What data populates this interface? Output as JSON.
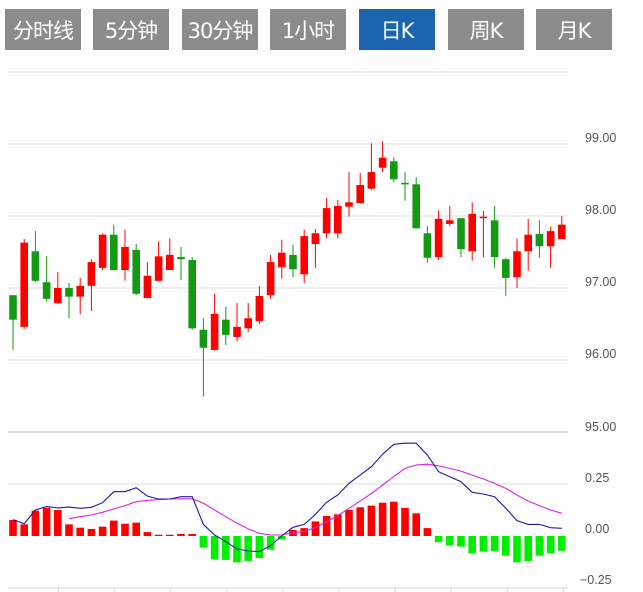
{
  "tabs": [
    {
      "label": "分时线",
      "active": false
    },
    {
      "label": "5分钟",
      "active": false
    },
    {
      "label": "30分钟",
      "active": false
    },
    {
      "label": "1小时",
      "active": false
    },
    {
      "label": "日K",
      "active": true
    },
    {
      "label": "周K",
      "active": false
    },
    {
      "label": "月K",
      "active": false
    }
  ],
  "colors": {
    "up": "#ff0000",
    "down": "#139a13",
    "macd_down": "#00ee00",
    "dif": "#1a1aaa",
    "dea": "#e020e0",
    "active_tab": "#1b64b0",
    "tab": "#8c8c8c"
  },
  "chart_data": [
    {
      "type": "candlestick",
      "title": "日K",
      "y_tick_labels": [
        "99.00",
        "98.00",
        "97.00",
        "96.00",
        "95.00"
      ],
      "ylim": [
        95,
        100
      ],
      "candles": [
        [
          96.9,
          96.56,
          96.9,
          96.14
        ],
        [
          96.46,
          97.63,
          97.68,
          96.43
        ],
        [
          97.51,
          97.1,
          97.79,
          97.08
        ],
        [
          97.08,
          96.85,
          97.44,
          96.81
        ],
        [
          96.79,
          97.0,
          97.22,
          96.78
        ],
        [
          97.0,
          96.88,
          97.07,
          96.58
        ],
        [
          96.88,
          97.03,
          97.14,
          96.64
        ],
        [
          97.03,
          97.36,
          97.4,
          96.68
        ],
        [
          97.28,
          97.74,
          97.76,
          97.25
        ],
        [
          97.74,
          97.25,
          97.88,
          97.24
        ],
        [
          97.25,
          97.57,
          97.81,
          97.1
        ],
        [
          97.53,
          96.92,
          97.61,
          96.9
        ],
        [
          96.86,
          97.17,
          97.36,
          96.86
        ],
        [
          97.1,
          97.44,
          97.65,
          97.1
        ],
        [
          97.25,
          97.46,
          97.69,
          97.25
        ],
        [
          97.43,
          97.4,
          97.57,
          97.11
        ],
        [
          97.39,
          96.44,
          97.43,
          96.42
        ],
        [
          96.42,
          96.17,
          96.58,
          95.49
        ],
        [
          96.14,
          96.64,
          96.92,
          96.13
        ],
        [
          96.56,
          96.35,
          96.74,
          96.21
        ],
        [
          96.32,
          96.46,
          96.79,
          96.26
        ],
        [
          96.44,
          96.58,
          96.79,
          96.39
        ],
        [
          96.54,
          96.89,
          97.03,
          96.5
        ],
        [
          96.9,
          97.36,
          97.46,
          96.85
        ],
        [
          97.29,
          97.49,
          97.67,
          97.13
        ],
        [
          97.46,
          97.26,
          97.6,
          97.15
        ],
        [
          97.19,
          97.72,
          97.81,
          97.07
        ],
        [
          97.61,
          97.76,
          97.82,
          97.28
        ],
        [
          97.76,
          98.11,
          98.25,
          97.69
        ],
        [
          97.76,
          98.14,
          98.22,
          97.69
        ],
        [
          98.13,
          98.19,
          98.61,
          97.99
        ],
        [
          98.18,
          98.43,
          98.6,
          98.17
        ],
        [
          98.38,
          98.61,
          99.01,
          98.36
        ],
        [
          98.67,
          98.81,
          99.04,
          98.61
        ],
        [
          98.76,
          98.51,
          98.82,
          98.47
        ],
        [
          98.46,
          98.44,
          98.61,
          98.21
        ],
        [
          98.44,
          97.83,
          98.54,
          97.82
        ],
        [
          97.76,
          97.42,
          97.86,
          97.35
        ],
        [
          97.43,
          97.96,
          98.08,
          97.39
        ],
        [
          97.89,
          97.94,
          98.14,
          97.86
        ],
        [
          97.97,
          97.54,
          97.97,
          97.43
        ],
        [
          97.51,
          98.03,
          98.19,
          97.38
        ],
        [
          97.97,
          97.99,
          98.07,
          97.43
        ],
        [
          97.94,
          97.43,
          98.14,
          97.28
        ],
        [
          97.4,
          97.14,
          97.42,
          96.89
        ],
        [
          97.15,
          97.51,
          97.69,
          97.0
        ],
        [
          97.51,
          97.74,
          97.96,
          97.24
        ],
        [
          97.75,
          97.58,
          97.94,
          97.42
        ],
        [
          97.58,
          97.79,
          97.85,
          97.28
        ],
        [
          97.68,
          97.88,
          98.0,
          97.68
        ]
      ],
      "candle_fields": [
        "open",
        "close",
        "high",
        "low"
      ]
    },
    {
      "type": "macd",
      "y_tick_labels": [
        "0.25",
        "0.00",
        "−0.25"
      ],
      "ylim": [
        -0.25,
        0.5
      ],
      "histogram": [
        0.077,
        0.056,
        0.122,
        0.136,
        0.125,
        0.056,
        0.04,
        0.034,
        0.045,
        0.074,
        0.059,
        0.064,
        0.019,
        0.006,
        0.006,
        0.01,
        0.01,
        -0.056,
        -0.112,
        -0.115,
        -0.127,
        -0.12,
        -0.106,
        -0.066,
        -0.016,
        0.029,
        0.038,
        0.07,
        0.096,
        0.104,
        0.125,
        0.138,
        0.146,
        0.16,
        0.165,
        0.135,
        0.109,
        0.038,
        -0.03,
        -0.046,
        -0.051,
        -0.083,
        -0.075,
        -0.072,
        -0.095,
        -0.127,
        -0.12,
        -0.095,
        -0.083,
        -0.071
      ],
      "dif": [
        0.079,
        0.059,
        0.125,
        0.142,
        0.135,
        0.139,
        0.133,
        0.138,
        0.16,
        0.213,
        0.213,
        0.232,
        0.192,
        0.178,
        0.178,
        0.189,
        0.189,
        0.056,
        0.005,
        -0.027,
        -0.062,
        -0.072,
        -0.075,
        -0.046,
        0.0,
        0.042,
        0.056,
        0.104,
        0.162,
        0.197,
        0.253,
        0.293,
        0.333,
        0.393,
        0.441,
        0.446,
        0.446,
        0.389,
        0.309,
        0.285,
        0.261,
        0.21,
        0.202,
        0.189,
        0.133,
        0.074,
        0.056,
        0.056,
        0.04,
        0.037
      ],
      "dea": [
        null,
        null,
        null,
        null,
        null,
        0.083,
        0.093,
        0.101,
        0.114,
        0.13,
        0.146,
        0.165,
        0.171,
        0.175,
        0.178,
        0.179,
        0.179,
        0.157,
        0.125,
        0.093,
        0.061,
        0.034,
        0.013,
        0.005,
        0.005,
        0.016,
        0.022,
        0.04,
        0.069,
        0.098,
        0.133,
        0.168,
        0.205,
        0.245,
        0.285,
        0.325,
        0.341,
        0.345,
        0.337,
        0.325,
        0.312,
        0.293,
        0.274,
        0.253,
        0.229,
        0.197,
        0.168,
        0.146,
        0.125,
        0.109
      ]
    }
  ]
}
